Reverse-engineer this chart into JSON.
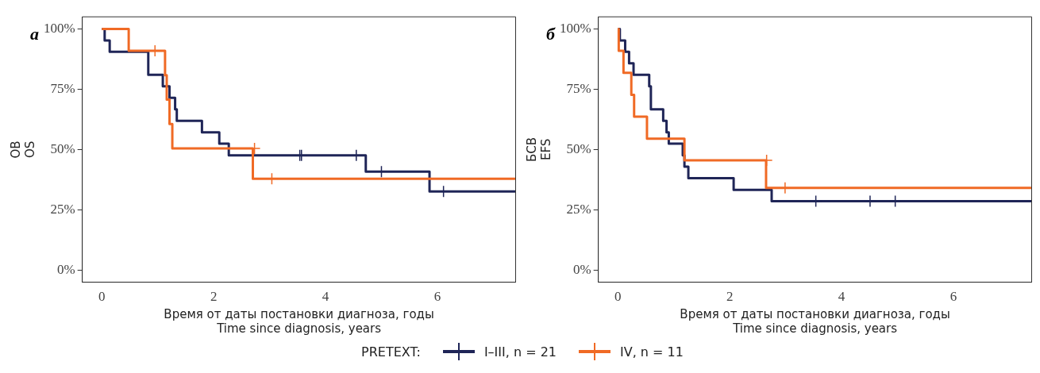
{
  "chart_data": [
    {
      "type": "step",
      "title": "а",
      "xlabel": "Время от даты постановки диагноза, годы\nTime since diagnosis, years",
      "ylabel": "ОВ\nOS",
      "legend": "bottom",
      "legend_title": "PRETEXT:",
      "xlim": [
        -0.35,
        7.4
      ],
      "xticks": [
        0,
        2,
        4,
        6
      ],
      "ylim": [
        -5,
        105
      ],
      "yticks": [
        {
          "value": 0,
          "label": "0%"
        },
        {
          "value": 25,
          "label": "25%"
        },
        {
          "value": 50,
          "label": "50%"
        },
        {
          "value": 75,
          "label": "75%"
        },
        {
          "value": 100,
          "label": "100%"
        }
      ],
      "grid": false,
      "line_style": "solid",
      "series": [
        {
          "name": "I–III, n = 21",
          "color": "#1f2557",
          "x": [
            0,
            0.05,
            0.14,
            0.83,
            1.09,
            1.21,
            1.31,
            1.34,
            1.79,
            2.1,
            2.27,
            4.72,
            5.86,
            7.4
          ],
          "values": [
            100,
            95.2,
            90.5,
            81.0,
            76.2,
            71.4,
            66.7,
            61.9,
            57.1,
            52.4,
            47.6,
            40.8,
            32.6,
            32.6
          ]
        },
        {
          "name": "IV, n = 11",
          "color": "#f06a25",
          "x": [
            0,
            0.48,
            1.13,
            1.16,
            1.21,
            1.26,
            2.7,
            7.4
          ],
          "values": [
            100,
            90.9,
            80.8,
            70.7,
            60.6,
            50.5,
            37.9,
            37.9
          ]
        },
        {
          "color": "#1f2557",
          "type": "scatter",
          "marker": "cross",
          "x": [
            3.54,
            3.57,
            4.55,
            5.0,
            6.11
          ],
          "values": [
            47.6,
            47.6,
            47.6,
            40.8,
            32.6
          ]
        },
        {
          "color": "#f06a25",
          "type": "scatter",
          "marker": "cross",
          "x": [
            0.95,
            2.73,
            3.04
          ],
          "values": [
            90.9,
            50.5,
            37.9
          ]
        }
      ]
    },
    {
      "type": "step",
      "title": "б",
      "xlabel": "Время от даты постановки диагноза, годы\nTime since diagnosis, years",
      "ylabel": "БСВ\nEFS",
      "xlim": [
        -0.35,
        7.4
      ],
      "xticks": [
        0,
        2,
        4,
        6
      ],
      "ylim": [
        -5,
        105
      ],
      "yticks": [
        {
          "value": 0,
          "label": "0%"
        },
        {
          "value": 25,
          "label": "25%"
        },
        {
          "value": 50,
          "label": "50%"
        },
        {
          "value": 75,
          "label": "75%"
        },
        {
          "value": 100,
          "label": "100%"
        }
      ],
      "grid": false,
      "line_style": "solid",
      "series": [
        {
          "color": "#1f2557",
          "x": [
            0,
            0.035,
            0.13,
            0.2,
            0.28,
            0.56,
            0.59,
            0.81,
            0.87,
            0.91,
            1.16,
            1.19,
            1.26,
            2.07,
            2.75,
            7.4
          ],
          "values": [
            100,
            95.2,
            90.5,
            85.7,
            81.0,
            76.2,
            66.7,
            61.9,
            57.1,
            52.4,
            47.6,
            42.9,
            38.1,
            33.3,
            28.6,
            28.6
          ]
        },
        {
          "color": "#f06a25",
          "x": [
            0,
            0.015,
            0.1,
            0.24,
            0.29,
            0.52,
            1.19,
            2.65,
            7.4
          ],
          "values": [
            100,
            90.9,
            81.8,
            72.7,
            63.6,
            54.5,
            45.5,
            34.1,
            34.1
          ]
        },
        {
          "color": "#1f2557",
          "type": "scatter",
          "marker": "cross",
          "x": [
            3.54,
            4.51,
            4.96
          ],
          "values": [
            28.6,
            28.6,
            28.6
          ]
        },
        {
          "color": "#f06a25",
          "type": "scatter",
          "marker": "cross",
          "x": [
            2.66,
            2.99
          ],
          "values": [
            45.5,
            34.1
          ]
        }
      ]
    }
  ]
}
